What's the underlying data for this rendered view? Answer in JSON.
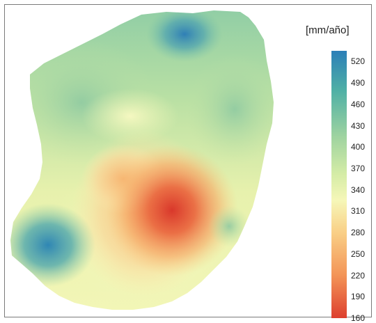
{
  "legend": {
    "title": "[mm/año]",
    "ticks": [
      "520",
      "490",
      "460",
      "430",
      "400",
      "370",
      "340",
      "310",
      "280",
      "250",
      "220",
      "190",
      "160"
    ],
    "min": 160,
    "max": 535
  },
  "colors": {
    "high": "#2b7fb8",
    "teal": "#4fb0a5",
    "green": "#9ed3a0",
    "light_green": "#d4eca6",
    "yellow": "#f6f7b8",
    "light_orange": "#f9cf86",
    "orange": "#f39457",
    "low": "#dd3f2e"
  }
}
